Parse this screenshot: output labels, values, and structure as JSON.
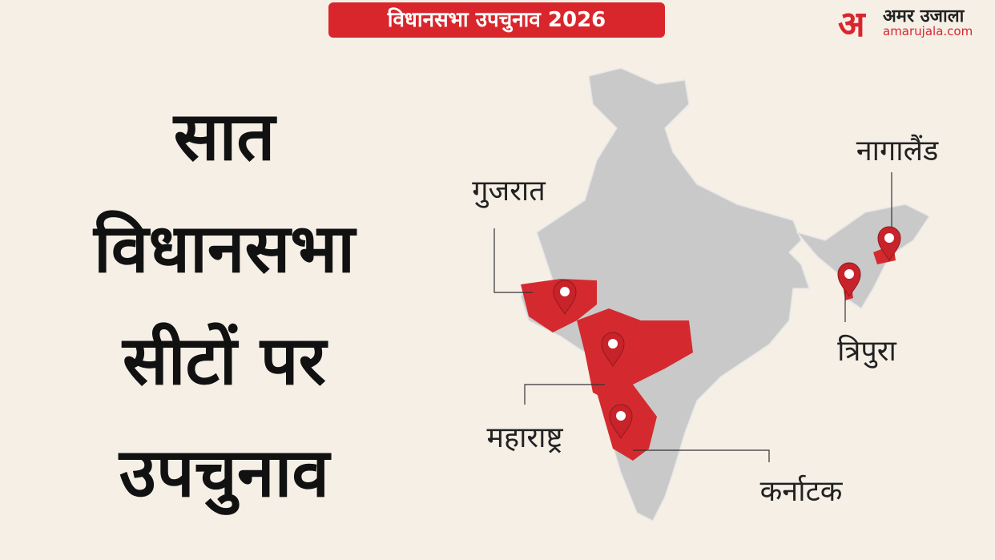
{
  "badge": "विधानसभा उपचुनाव 2026",
  "logo": {
    "mark": "अ",
    "name": "अमर उजाला",
    "site": "amarujala.com"
  },
  "headline": [
    "सात",
    "विधानसभा",
    "सीटों पर",
    "उपचुनाव"
  ],
  "map_labels": {
    "gujarat": "गुजरात",
    "maharashtra": "महाराष्ट्र",
    "karnataka": "कर्नाटक",
    "nagaland": "नागालैंड",
    "tripura": "त्रिपुरा"
  }
}
